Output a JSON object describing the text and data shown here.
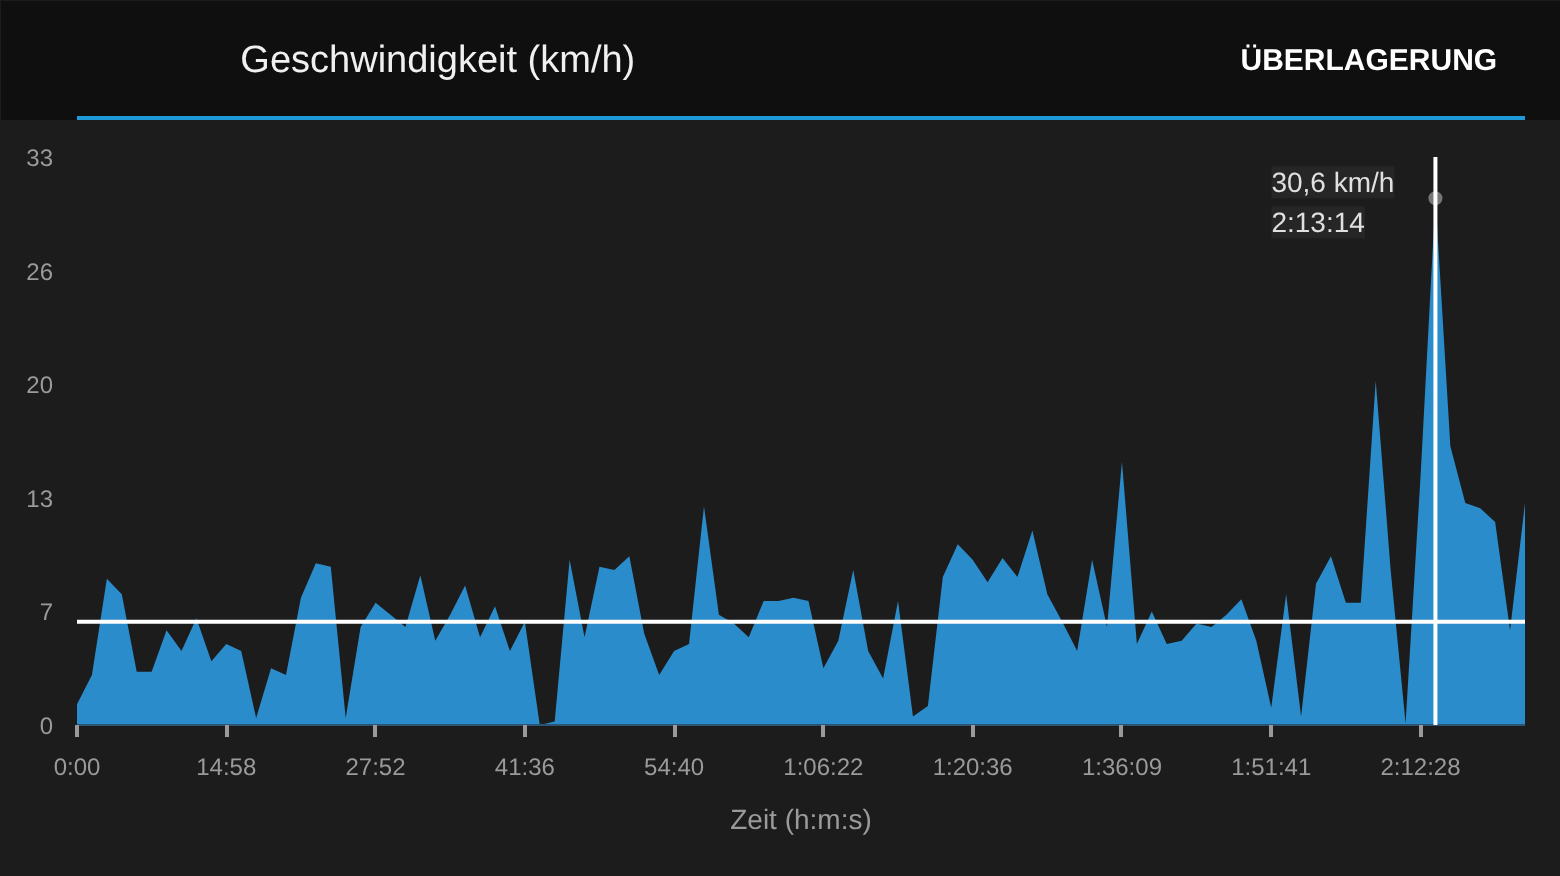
{
  "chart_data": {
    "type": "area",
    "title": "Geschwindigkeit (km/h)",
    "xlabel": "Zeit (h:m:s)",
    "annotations": [
      "ÜBERLAGERUNG",
      "30,6 km/h",
      "2:13:14"
    ],
    "categories": [
      "0:00",
      null,
      null,
      null,
      null,
      null,
      null,
      null,
      null,
      null,
      "14:58",
      null,
      null,
      null,
      null,
      null,
      null,
      null,
      null,
      null,
      "27:52",
      null,
      null,
      null,
      null,
      null,
      null,
      null,
      null,
      null,
      "41:36",
      null,
      null,
      null,
      null,
      null,
      null,
      null,
      null,
      null,
      "54:40",
      null,
      null,
      null,
      null,
      null,
      null,
      null,
      null,
      null,
      "1:06:22",
      null,
      null,
      null,
      null,
      null,
      null,
      null,
      null,
      null,
      "1:20:36",
      null,
      null,
      null,
      null,
      null,
      null,
      null,
      null,
      null,
      "1:36:09",
      null,
      null,
      null,
      null,
      null,
      null,
      null,
      null,
      null,
      "1:51:41",
      null,
      null,
      null,
      null,
      null,
      null,
      null,
      null,
      null,
      "2:12:28",
      null,
      null,
      null,
      null,
      null,
      null,
      null
    ],
    "series": [
      {
        "color": "#2b8ccc",
        "values": [
          1.2,
          2.9,
          8.5,
          7.6,
          3.1,
          3.1,
          5.5,
          4.3,
          6.2,
          3.7,
          4.7,
          4.3,
          0.4,
          3.3,
          2.9,
          7.4,
          9.4,
          9.2,
          0.4,
          5.7,
          7.1,
          6.4,
          5.7,
          8.7,
          4.9,
          6.4,
          8.1,
          5.1,
          6.9,
          4.3,
          6.0,
          0,
          0.2,
          9.6,
          5.1,
          9.2,
          9.0,
          9.8,
          5.3,
          2.9,
          4.3,
          4.7,
          12.7,
          6.4,
          5.9,
          5.1,
          7.2,
          7.2,
          7.4,
          7.2,
          3.3,
          4.9,
          9.0,
          4.3,
          2.7,
          7.2,
          0.5,
          1.1,
          8.6,
          10.5,
          9.6,
          8.3,
          9.7,
          8.6,
          11.3,
          7.6,
          6.0,
          4.3,
          9.6,
          5.7,
          15.3,
          4.7,
          6.6,
          4.7,
          4.9,
          5.9,
          5.7,
          6.4,
          7.3,
          4.9,
          1.0,
          7.6,
          0.5,
          8.2,
          9.8,
          7.1,
          7.1,
          20.0,
          9.0,
          0.1,
          14.4,
          30.6,
          16.2,
          12.9,
          12.6,
          11.8,
          5.5,
          12.9
        ]
      }
    ],
    "ylim": [
      0,
      33
    ],
    "yticks": [
      0,
      {
        "value": 6.6,
        "label": "7"
      },
      {
        "value": 13.2,
        "label": "13"
      },
      {
        "value": 19.8,
        "label": "20"
      },
      {
        "value": 26.4,
        "label": "26"
      },
      33
    ],
    "ref_lines": [
      {
        "axis": "y",
        "value": 6.0,
        "color": "#ffffff"
      }
    ]
  }
}
